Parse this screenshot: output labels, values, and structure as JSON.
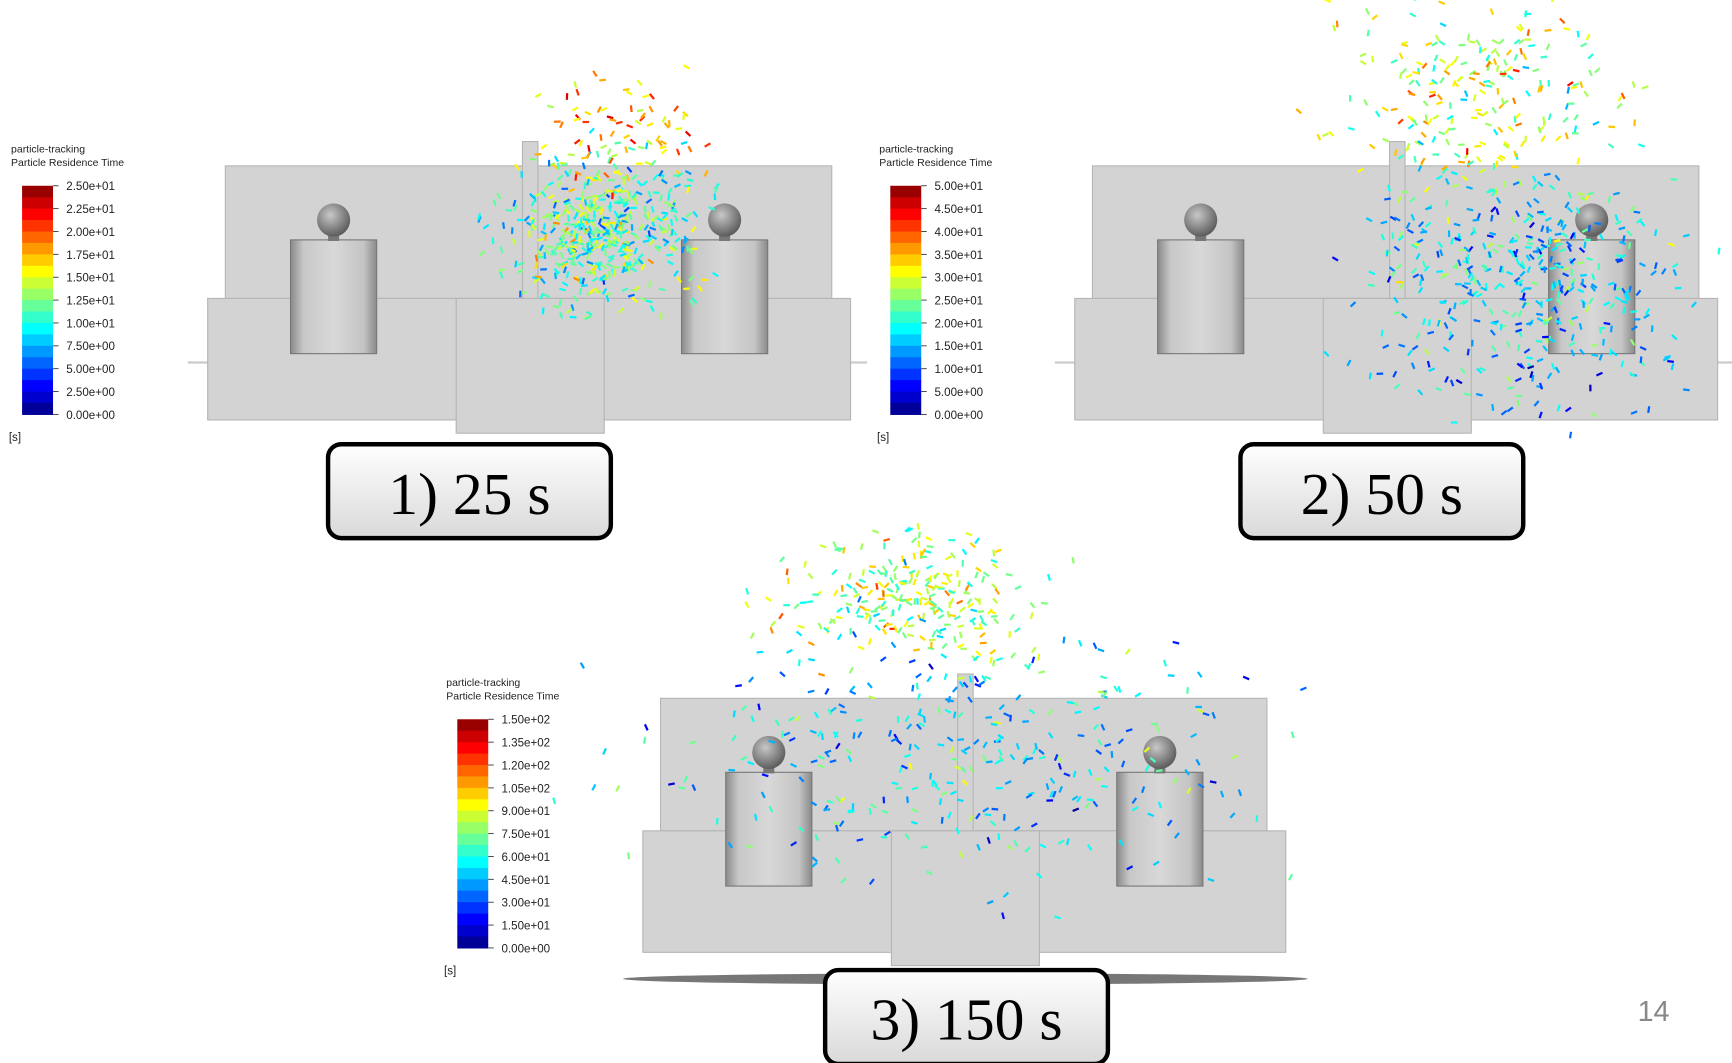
{
  "panels": [
    {
      "legend": {
        "source": "particle-tracking",
        "title": "Particle Residence Time",
        "labels": [
          "2.50e+01",
          "2.25e+01",
          "2.00e+01",
          "1.75e+01",
          "1.50e+01",
          "1.25e+01",
          "1.00e+01",
          "7.50e+00",
          "5.00e+00",
          "2.50e+00",
          "0.00e+00"
        ],
        "unit": "[s]"
      },
      "caption": "1) 25 s"
    },
    {
      "legend": {
        "source": "particle-tracking",
        "title": "Particle Residence Time",
        "labels": [
          "5.00e+01",
          "4.50e+01",
          "4.00e+01",
          "3.50e+01",
          "3.00e+01",
          "2.50e+01",
          "2.00e+01",
          "1.50e+01",
          "1.00e+01",
          "5.00e+00",
          "0.00e+00"
        ],
        "unit": "[s]"
      },
      "caption": "2) 50 s"
    },
    {
      "legend": {
        "source": "particle-tracking",
        "title": "Particle Residence Time",
        "labels": [
          "1.50e+02",
          "1.35e+02",
          "1.20e+02",
          "1.05e+02",
          "9.00e+01",
          "7.50e+01",
          "6.00e+01",
          "4.50e+01",
          "3.00e+01",
          "1.50e+01",
          "0.00e+00"
        ],
        "unit": "[s]"
      },
      "caption": "3) 150 s"
    }
  ],
  "page_number": "14"
}
